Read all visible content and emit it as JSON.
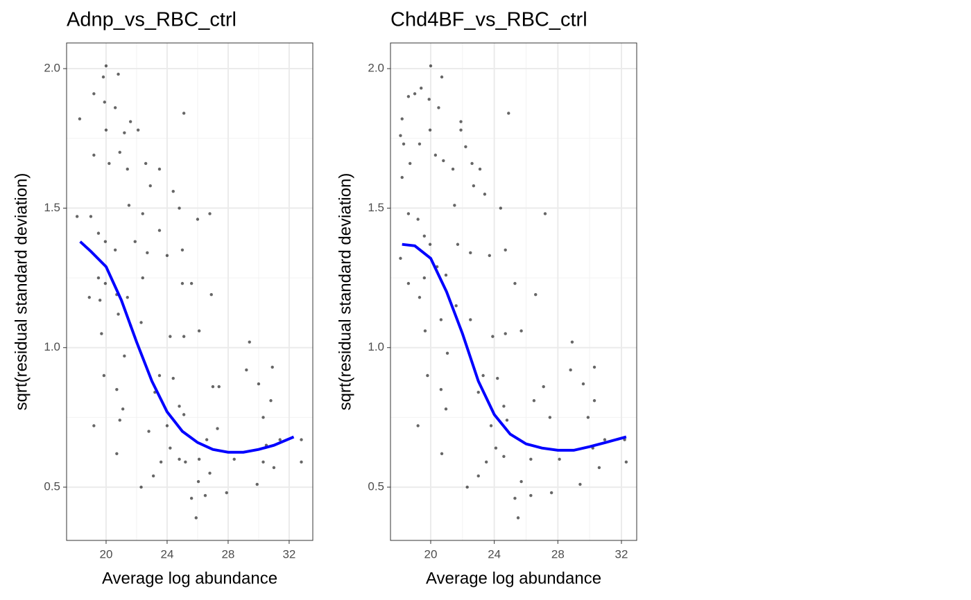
{
  "chart_data": [
    {
      "type": "scatter",
      "title": "Adnp_vs_RBC_ctrl",
      "x_label": "Average log abundance",
      "y_label": "sqrt(residual standard deviation)",
      "xlim": [
        17.41,
        33.55
      ],
      "xticks": [
        20,
        24,
        28,
        32
      ],
      "xminor": [
        22,
        26,
        30
      ],
      "ylim": [
        0.309,
        2.092
      ],
      "yticks": [
        0.5,
        {
          "value": 1.0,
          "label": "1.0"
        },
        1.5,
        {
          "value": 2.0,
          "label": "2.0"
        }
      ],
      "yminor": [
        0.75,
        1.25,
        1.75
      ],
      "grid": true,
      "points": {
        "color": "#000000",
        "x": [
          18.27,
          20.0,
          19.82,
          20.8,
          19.2,
          19.9,
          20.6,
          21.6,
          22.1,
          21.2,
          20.0,
          19.2,
          20.2,
          20.9,
          21.4,
          22.6,
          23.5,
          24.4,
          25.1,
          22.9,
          21.5,
          22.4,
          23.5,
          24.8,
          26.0,
          26.8,
          18.1,
          19.0,
          19.5,
          19.95,
          20.6,
          21.9,
          22.7,
          24.0,
          25.0,
          19.5,
          19.95,
          20.7,
          21.4,
          22.4,
          25.0,
          25.6,
          26.9,
          18.9,
          19.6,
          19.7,
          20.8,
          21.6,
          22.3,
          24.2,
          25.1,
          26.1,
          19.86,
          19.2,
          20.7,
          21.2,
          21.1,
          20.9,
          20.7,
          22.3,
          22.8,
          23.2,
          23.5,
          24.0,
          24.4,
          24.8,
          25.1,
          23.1,
          23.6,
          24.2,
          24.8,
          25.2,
          25.6,
          25.9,
          26.05,
          26.1,
          26.5,
          26.6,
          26.8,
          27.0,
          27.4,
          27.3,
          27.9,
          28.4,
          29.4,
          29.2,
          30.0,
          30.3,
          30.5,
          29.9,
          30.3,
          30.9,
          30.8,
          31.0,
          31.4,
          32.8,
          32.8
        ],
        "y": [
          1.82,
          2.01,
          1.97,
          1.98,
          1.91,
          1.88,
          1.86,
          1.81,
          1.78,
          1.77,
          1.78,
          1.69,
          1.66,
          1.7,
          1.64,
          1.66,
          1.64,
          1.56,
          1.84,
          1.58,
          1.51,
          1.48,
          1.42,
          1.5,
          1.46,
          1.48,
          1.47,
          1.47,
          1.41,
          1.38,
          1.35,
          1.38,
          1.34,
          1.33,
          1.35,
          1.25,
          1.23,
          1.19,
          1.18,
          1.25,
          1.23,
          1.23,
          1.19,
          1.18,
          1.17,
          1.05,
          1.12,
          1.08,
          1.09,
          1.04,
          1.04,
          1.06,
          0.9,
          0.72,
          0.85,
          0.97,
          0.78,
          0.74,
          0.62,
          0.5,
          0.7,
          0.84,
          0.9,
          0.72,
          0.89,
          0.79,
          0.76,
          0.54,
          0.59,
          0.64,
          0.6,
          0.59,
          0.46,
          0.39,
          0.52,
          0.6,
          0.47,
          0.67,
          0.55,
          0.86,
          0.86,
          0.71,
          0.48,
          0.6,
          1.02,
          0.92,
          0.87,
          0.75,
          0.65,
          0.51,
          0.59,
          0.93,
          0.81,
          0.57,
          0.67,
          0.67,
          0.59
        ]
      },
      "trend": {
        "color": "#0000ff",
        "x": [
          18.3,
          19,
          20,
          21,
          22,
          23,
          24,
          25,
          26,
          27,
          28,
          29,
          30,
          31,
          32.3
        ],
        "y": [
          1.38,
          1.345,
          1.29,
          1.17,
          1.02,
          0.88,
          0.77,
          0.7,
          0.66,
          0.635,
          0.625,
          0.625,
          0.635,
          0.65,
          0.68
        ]
      }
    },
    {
      "type": "scatter",
      "title": "Chd4BF_vs_RBC_ctrl",
      "x_label": "Average log abundance",
      "y_label": "sqrt(residual standard deviation)",
      "xlim": [
        17.47,
        32.96
      ],
      "xticks": [
        20,
        24,
        28,
        32
      ],
      "xminor": [
        22,
        26,
        30
      ],
      "ylim": [
        0.309,
        2.092
      ],
      "yticks": [
        0.5,
        {
          "value": 1.0,
          "label": "1.0"
        },
        1.5,
        {
          "value": 2.0,
          "label": "2.0"
        }
      ],
      "yminor": [
        0.75,
        1.25,
        1.75
      ],
      "grid": true,
      "points": {
        "color": "#000000",
        "x": [
          18.2,
          20.0,
          20.7,
          19.4,
          19.0,
          18.6,
          19.9,
          20.5,
          18.3,
          18.1,
          18.2,
          18.7,
          19.3,
          19.96,
          20.3,
          20.8,
          21.4,
          21.9,
          22.2,
          21.9,
          22.6,
          23.1,
          23.4,
          24.9,
          24.4,
          22.7,
          21.5,
          18.6,
          18.1,
          18.6,
          19.2,
          19.6,
          19.96,
          20.4,
          20.96,
          21.7,
          22.5,
          23.7,
          24.7,
          19.6,
          19.65,
          19.3,
          20.65,
          21.6,
          21.05,
          22.5,
          23.9,
          24.7,
          25.7,
          27.2,
          26.6,
          25.3,
          19.8,
          19.2,
          20.65,
          20.96,
          20.7,
          22.3,
          23.0,
          23.3,
          23.8,
          24.2,
          24.6,
          24.8,
          23.0,
          23.5,
          24.1,
          24.6,
          25.3,
          25.5,
          25.7,
          26.3,
          26.3,
          26.5,
          27.1,
          27.5,
          27.6,
          28.1,
          28.9,
          28.8,
          29.6,
          29.9,
          30.2,
          29.4,
          30.3,
          30.3,
          30.6,
          30.95,
          32.2,
          32.3
        ],
        "y": [
          1.82,
          2.01,
          1.97,
          1.93,
          1.91,
          1.9,
          1.89,
          1.86,
          1.73,
          1.76,
          1.61,
          1.66,
          1.73,
          1.78,
          1.69,
          1.67,
          1.64,
          1.81,
          1.72,
          1.78,
          1.66,
          1.64,
          1.55,
          1.84,
          1.5,
          1.58,
          1.51,
          1.48,
          1.32,
          1.23,
          1.46,
          1.4,
          1.37,
          1.29,
          1.26,
          1.37,
          1.34,
          1.33,
          1.35,
          1.25,
          1.06,
          1.18,
          1.1,
          1.15,
          0.98,
          1.1,
          1.04,
          1.05,
          1.06,
          1.48,
          1.19,
          1.23,
          0.9,
          0.72,
          0.85,
          0.78,
          0.62,
          0.5,
          0.84,
          0.9,
          0.72,
          0.89,
          0.79,
          0.74,
          0.54,
          0.59,
          0.64,
          0.61,
          0.46,
          0.39,
          0.52,
          0.6,
          0.47,
          0.81,
          0.86,
          0.75,
          0.48,
          0.6,
          1.02,
          0.92,
          0.87,
          0.75,
          0.64,
          0.51,
          0.93,
          0.81,
          0.57,
          0.67,
          0.67,
          0.59
        ]
      },
      "trend": {
        "color": "#0000ff",
        "x": [
          18.2,
          19,
          20,
          21,
          22,
          23,
          24,
          25,
          26,
          27,
          28,
          29,
          30,
          31,
          32.3
        ],
        "y": [
          1.37,
          1.365,
          1.32,
          1.2,
          1.05,
          0.88,
          0.76,
          0.69,
          0.655,
          0.64,
          0.632,
          0.632,
          0.645,
          0.66,
          0.68
        ]
      }
    }
  ]
}
